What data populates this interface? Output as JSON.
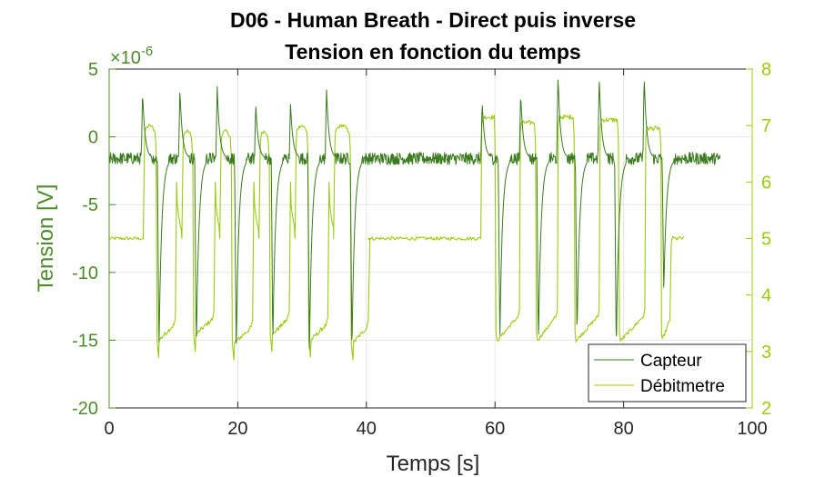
{
  "chart_data": {
    "type": "line",
    "title": "D06 - Human Breath - Direct puis inverse",
    "subtitle": "Tension en fonction du temps",
    "xlabel": "Temps [s]",
    "ylabel": "Tension [V]",
    "y_exponent": "× 10^-6",
    "y_exponent_base": "×10",
    "y_exponent_power": "-6",
    "xlim": [
      0,
      100
    ],
    "ylim_left": [
      -20,
      5
    ],
    "ylim_right": [
      2,
      8
    ],
    "x_ticks": [
      0,
      20,
      40,
      60,
      80,
      100
    ],
    "y_ticks_left": [
      -20,
      -15,
      -10,
      -5,
      0,
      5
    ],
    "y_ticks_right": [
      2,
      3,
      4,
      5,
      6,
      7,
      8
    ],
    "grid": true,
    "legend_position": "bottom-right",
    "colors": {
      "capteur": "#3b7a1e",
      "debitmetre": "#99cc11",
      "left_axis": "#4d8c2a",
      "right_axis": "#99cc11"
    },
    "series": [
      {
        "name": "Capteur",
        "axis": "left",
        "baseline": -1.6,
        "peaks": [
          {
            "t": 5.0,
            "v": 3.3
          },
          {
            "t": 10.8,
            "v": 3.5
          },
          {
            "t": 16.6,
            "v": 3.7
          },
          {
            "t": 22.6,
            "v": 2.4
          },
          {
            "t": 28.0,
            "v": 2.5
          },
          {
            "t": 33.6,
            "v": 3.6
          },
          {
            "t": 57.8,
            "v": 2.6
          },
          {
            "t": 63.8,
            "v": 3.2
          },
          {
            "t": 69.6,
            "v": 4.5
          },
          {
            "t": 76.0,
            "v": 4.5
          },
          {
            "t": 83.0,
            "v": 4.5
          }
        ],
        "dips": [
          {
            "t": 7.5,
            "v": -15.8
          },
          {
            "t": 13.3,
            "v": -15.7
          },
          {
            "t": 19.5,
            "v": -15.8
          },
          {
            "t": 25.2,
            "v": -15.5
          },
          {
            "t": 30.9,
            "v": -15.6
          },
          {
            "t": 37.5,
            "v": -16.1
          },
          {
            "t": 60.5,
            "v": -14.9
          },
          {
            "t": 66.5,
            "v": -15.5
          },
          {
            "t": 72.5,
            "v": -14.9
          },
          {
            "t": 78.6,
            "v": -16.0
          },
          {
            "t": 86.0,
            "v": -11.5
          }
        ],
        "x_end": 95
      },
      {
        "name": "Débitmetre",
        "axis": "right",
        "rest": 5.0,
        "cycles": [
          {
            "up": 5.3,
            "down": 7.3,
            "low_end": 10.3,
            "high": 6.95,
            "low": 2.9
          },
          {
            "up": 11.3,
            "down": 13.0,
            "low_end": 16.3,
            "high": 6.85,
            "low": 3.0
          },
          {
            "up": 17.2,
            "down": 19.0,
            "low_end": 22.3,
            "high": 6.85,
            "low": 2.85
          },
          {
            "up": 23.3,
            "down": 24.9,
            "low_end": 28.0,
            "high": 6.85,
            "low": 3.0
          },
          {
            "up": 28.9,
            "down": 30.9,
            "low_end": 34.0,
            "high": 6.95,
            "low": 2.9
          },
          {
            "up": 34.9,
            "down": 37.5,
            "low_end": 40.3,
            "high": 6.95,
            "low": 2.85
          }
        ],
        "inverse_cycles": [
          {
            "low_start": 60.0,
            "up": 63.8,
            "down": 66.3,
            "high": 7.1,
            "low": 3.15
          },
          {
            "low_start": 66.3,
            "up": 69.7,
            "down": 72.3,
            "high": 7.2,
            "low": 3.15
          },
          {
            "low_start": 72.3,
            "up": 76.2,
            "down": 79.2,
            "high": 7.15,
            "low": 3.15
          },
          {
            "low_start": 79.2,
            "up": 83.3,
            "down": 85.8,
            "high": 7.0,
            "low": 3.15
          }
        ],
        "inverse_first_high": {
          "up": 57.8,
          "down": 60.0,
          "high": 7.2
        },
        "rest_segments": [
          [
            0,
            5.3
          ],
          [
            40.3,
            57.8
          ],
          [
            87.5,
            89.5
          ]
        ],
        "x_end": 89.5
      }
    ]
  }
}
